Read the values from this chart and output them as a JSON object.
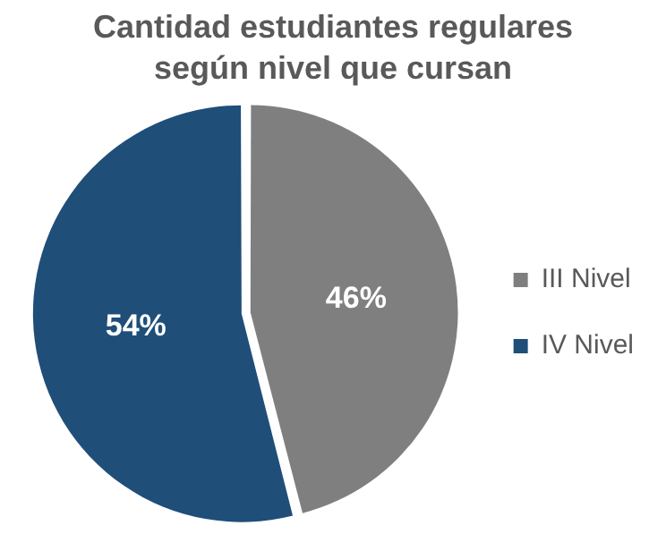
{
  "chart_data": {
    "type": "pie",
    "title": "Cantidad estudiantes regulares según nivel que cursan",
    "categories": [
      "III Nivel",
      "IV Nivel"
    ],
    "values": [
      46,
      54
    ],
    "colors": [
      "#7f7f7f",
      "#1f4e79"
    ],
    "value_labels": [
      "46%",
      "54%"
    ],
    "legend": "right"
  }
}
